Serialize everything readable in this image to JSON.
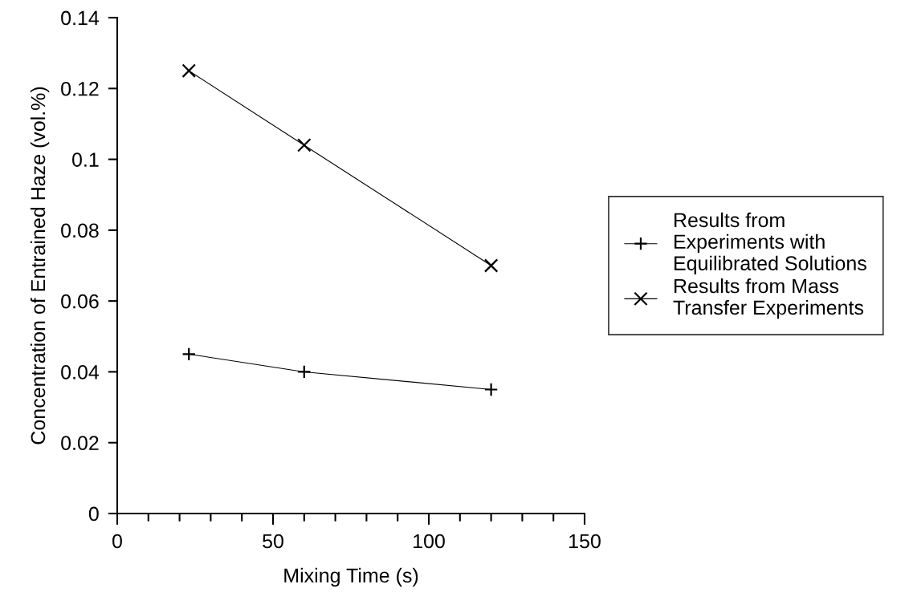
{
  "chart_data": {
    "type": "line",
    "xlabel": "Mixing Time (s)",
    "ylabel": "Concentration of Entrained Haze (vol.%)",
    "x": [
      23,
      60,
      120
    ],
    "series": [
      {
        "name": "Results from\nExperiments with\nEquilibrated Solutions",
        "color": "#000000",
        "marker": "cross",
        "values": [
          0.045,
          0.04,
          0.035
        ]
      },
      {
        "name": "Results from Mass\nTransfer Experiments",
        "color": "#000000",
        "marker": "x",
        "values": [
          0.125,
          0.104,
          0.07
        ]
      }
    ],
    "xlim": [
      0,
      150
    ],
    "xticks": [
      0,
      50,
      100,
      150
    ],
    "ylim": [
      0,
      0.14
    ],
    "yticks": [
      0,
      0.02,
      0.04,
      0.06,
      0.08,
      0.1,
      0.12,
      0.14
    ],
    "grid": false,
    "legend": "right",
    "line_style": "solid"
  }
}
